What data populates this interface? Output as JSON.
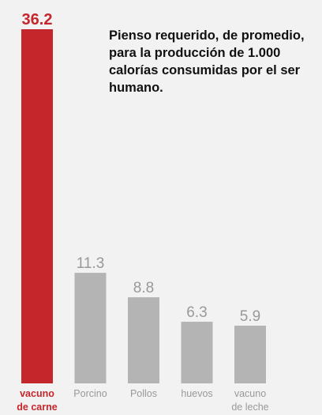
{
  "chart_data": {
    "type": "bar",
    "annotation": "Pienso requerido, de promedio, para la producción de 1.000 calorías consumidas por el ser humano.",
    "categories": [
      [
        "vacuno",
        "de carne"
      ],
      [
        "Porcino"
      ],
      [
        "Pollos"
      ],
      [
        "huevos"
      ],
      [
        "vacuno",
        "de leche"
      ]
    ],
    "values": [
      36.2,
      11.3,
      8.8,
      6.3,
      5.9
    ],
    "value_labels": [
      "36.2",
      "11.3",
      "8.8",
      "6.3",
      "5.9"
    ],
    "highlight_index": 0,
    "ylim": [
      0,
      36.2
    ],
    "grid": false,
    "colors": {
      "highlight": "#c4262b",
      "bar": "#b4b4b4",
      "label": "#999999",
      "background": "#f2f2f2"
    }
  }
}
